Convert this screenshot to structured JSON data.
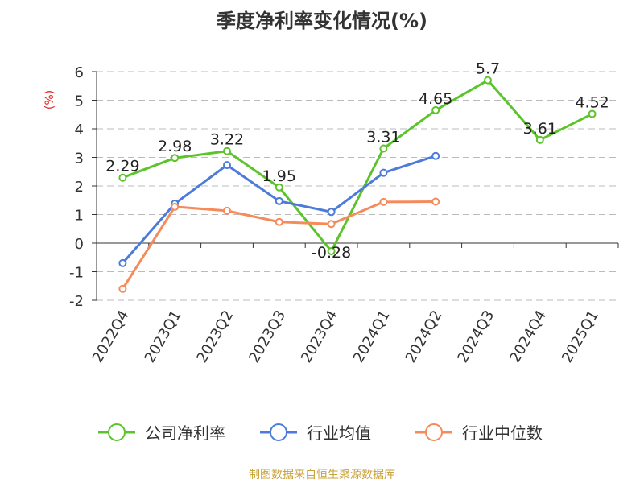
{
  "chart_data": {
    "type": "line",
    "title": "季度净利率变化情况(%)",
    "ylabel": "(%)",
    "categories": [
      "2022Q4",
      "2023Q1",
      "2023Q2",
      "2023Q3",
      "2023Q4",
      "2024Q1",
      "2024Q2",
      "2024Q3",
      "2024Q4",
      "2025Q1"
    ],
    "yticks": [
      "6",
      "5",
      "4",
      "3",
      "2",
      "1",
      "0",
      "-1",
      "-2"
    ],
    "ylim": [
      -2,
      6
    ],
    "grid": true,
    "legend_position": "bottom",
    "series": [
      {
        "name": "公司净利率",
        "color": "#5cc42b",
        "values": [
          2.29,
          2.98,
          3.22,
          1.95,
          -0.28,
          3.31,
          4.65,
          5.7,
          3.61,
          4.52
        ],
        "labels": [
          "2.29",
          "2.98",
          "3.22",
          "1.95",
          "-0.28",
          "3.31",
          "4.65",
          "5.7",
          "3.61",
          "4.52"
        ]
      },
      {
        "name": "行业均值",
        "color": "#4c7bd9",
        "values": [
          -0.7,
          1.38,
          2.73,
          1.47,
          1.09,
          2.46,
          3.05,
          null,
          null,
          null
        ]
      },
      {
        "name": "行业中位数",
        "color": "#f58b5a",
        "values": [
          -1.6,
          1.27,
          1.13,
          0.74,
          0.67,
          1.44,
          1.45,
          null,
          null,
          null
        ]
      }
    ],
    "source": "制图数据来自恒生聚源数据库"
  }
}
